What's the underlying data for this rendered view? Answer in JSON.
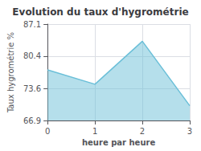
{
  "chart_data": {
    "type": "area",
    "title": "Evolution du taux d'hygrométrie",
    "xlabel": "heure par heure",
    "ylabel": "Taux hygrométrie %",
    "x": [
      0,
      1,
      2,
      3
    ],
    "values": [
      77.5,
      74.5,
      83.5,
      70.0
    ],
    "xlim": [
      0,
      3
    ],
    "ylim": [
      66.9,
      87.1
    ],
    "xticks": [
      0,
      1,
      2,
      3
    ],
    "yticks": [
      66.9,
      73.6,
      80.4,
      87.1
    ],
    "color": "#6bbfd8",
    "grid": true
  }
}
